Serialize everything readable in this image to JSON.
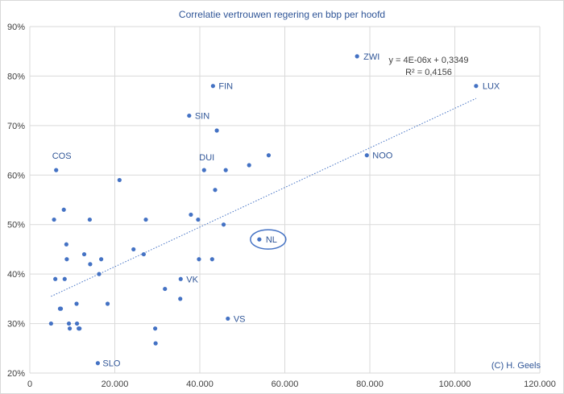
{
  "chart_data": {
    "type": "scatter",
    "title": "Correlatie vertrouwen regering en bbp per hoofd",
    "xlabel": "",
    "ylabel": "",
    "xlim": [
      0,
      120000
    ],
    "ylim": [
      0.2,
      0.9
    ],
    "x_ticks": [
      "0",
      "20.000",
      "40.000",
      "60.000",
      "80.000",
      "100.000",
      "120.000"
    ],
    "y_ticks": [
      "20%",
      "30%",
      "40%",
      "50%",
      "60%",
      "70%",
      "80%",
      "90%"
    ],
    "grid": true,
    "points": [
      {
        "x": 5000,
        "y": 0.3
      },
      {
        "x": 5700,
        "y": 0.51
      },
      {
        "x": 6000,
        "y": 0.39
      },
      {
        "x": 6200,
        "y": 0.61,
        "label": "COS"
      },
      {
        "x": 7100,
        "y": 0.33
      },
      {
        "x": 7300,
        "y": 0.33
      },
      {
        "x": 8000,
        "y": 0.53
      },
      {
        "x": 8200,
        "y": 0.39
      },
      {
        "x": 8600,
        "y": 0.46
      },
      {
        "x": 8700,
        "y": 0.43
      },
      {
        "x": 9200,
        "y": 0.3
      },
      {
        "x": 9400,
        "y": 0.29
      },
      {
        "x": 11000,
        "y": 0.34
      },
      {
        "x": 11100,
        "y": 0.3
      },
      {
        "x": 11500,
        "y": 0.29
      },
      {
        "x": 11700,
        "y": 0.29
      },
      {
        "x": 12800,
        "y": 0.44
      },
      {
        "x": 14100,
        "y": 0.51
      },
      {
        "x": 14200,
        "y": 0.42
      },
      {
        "x": 16000,
        "y": 0.22,
        "label": "SLO"
      },
      {
        "x": 16300,
        "y": 0.4
      },
      {
        "x": 16800,
        "y": 0.43
      },
      {
        "x": 18300,
        "y": 0.34
      },
      {
        "x": 21100,
        "y": 0.59
      },
      {
        "x": 24400,
        "y": 0.45
      },
      {
        "x": 26800,
        "y": 0.44
      },
      {
        "x": 27300,
        "y": 0.51
      },
      {
        "x": 29500,
        "y": 0.29
      },
      {
        "x": 29600,
        "y": 0.26
      },
      {
        "x": 31800,
        "y": 0.37
      },
      {
        "x": 35400,
        "y": 0.35
      },
      {
        "x": 35500,
        "y": 0.39,
        "label": "VK"
      },
      {
        "x": 37500,
        "y": 0.72,
        "label": "SIN"
      },
      {
        "x": 37900,
        "y": 0.52
      },
      {
        "x": 39600,
        "y": 0.51
      },
      {
        "x": 39800,
        "y": 0.43
      },
      {
        "x": 41000,
        "y": 0.61,
        "label": "DUI"
      },
      {
        "x": 42900,
        "y": 0.43
      },
      {
        "x": 43100,
        "y": 0.78,
        "label": "FIN"
      },
      {
        "x": 43600,
        "y": 0.57
      },
      {
        "x": 44000,
        "y": 0.69
      },
      {
        "x": 45600,
        "y": 0.5
      },
      {
        "x": 46100,
        "y": 0.61
      },
      {
        "x": 46600,
        "y": 0.31,
        "label": "VS"
      },
      {
        "x": 51600,
        "y": 0.62
      },
      {
        "x": 54000,
        "y": 0.47,
        "label": "NL"
      },
      {
        "x": 56200,
        "y": 0.64
      },
      {
        "x": 77000,
        "y": 0.84,
        "label": "ZWI"
      },
      {
        "x": 79300,
        "y": 0.64,
        "label": "NOO"
      },
      {
        "x": 105000,
        "y": 0.78,
        "label": "LUX"
      }
    ],
    "trendline": {
      "slope": 4e-06,
      "intercept": 0.3349,
      "x_range": [
        5000,
        105000
      ],
      "equation": "y = 4E-06x + 0,3349",
      "r_squared": "R² = 0,4156"
    },
    "highlighted_label": "NL",
    "annotation": "(C) H. Geels",
    "colors": {
      "marker": "#4472c4",
      "label": "#2f5597",
      "trend": "#4472c4",
      "grid": "#d9d9d9"
    }
  }
}
